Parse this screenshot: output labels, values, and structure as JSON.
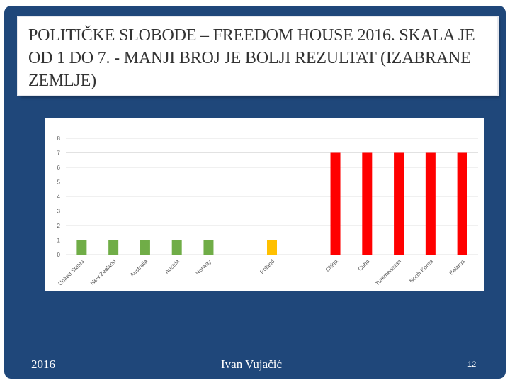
{
  "slide": {
    "title": "POLITIČKE SLOBODE – FREEDOM HOUSE 2016. SKALA JE OD 1 DO 7. - MANJI BROJ JE BOLJI REZULTAT (IZABRANE ZEMLJE)",
    "footer_left": "2016",
    "footer_center": "Ivan Vujačić",
    "page_number": "12"
  },
  "colors": {
    "background": "#1f477a",
    "green": "#70ad47",
    "yellow": "#ffc000",
    "red": "#ff0000",
    "gridline": "#d9d9d9"
  },
  "chart_data": {
    "type": "bar",
    "categories": [
      "United States",
      "New Zealand",
      "Australia",
      "Austria",
      "Norway",
      "",
      "Poland",
      "",
      "China",
      "Cuba",
      "Turkmenistan",
      "North Korea",
      "Belarus"
    ],
    "values": [
      1,
      1,
      1,
      1,
      1,
      null,
      1,
      null,
      7,
      7,
      7,
      7,
      7
    ],
    "bar_colors": [
      "#70ad47",
      "#70ad47",
      "#70ad47",
      "#70ad47",
      "#70ad47",
      null,
      "#ffc000",
      null,
      "#ff0000",
      "#ff0000",
      "#ff0000",
      "#ff0000",
      "#ff0000"
    ],
    "yticks": [
      0,
      1,
      2,
      3,
      4,
      5,
      6,
      7,
      8
    ],
    "ylim": [
      0,
      8
    ],
    "title": "",
    "xlabel": "",
    "ylabel": "",
    "grid": true
  }
}
